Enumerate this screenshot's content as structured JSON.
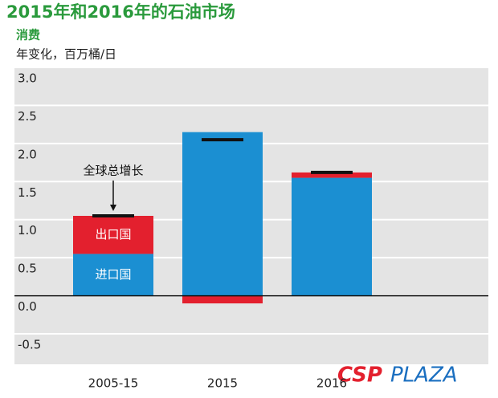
{
  "chart_data": {
    "type": "bar",
    "title": "2015年和2016年的石油市场",
    "subtitle": "消费",
    "y_label": "年变化，百万桶/日",
    "annotation": "全球总增长",
    "categories": [
      "2005-15",
      "2015",
      "2016"
    ],
    "series": [
      {
        "name": "进口国",
        "color": "#1b8fd2",
        "values": [
          0.55,
          2.15,
          1.55
        ]
      },
      {
        "name": "出口国",
        "color": "#e3202e",
        "values": [
          0.5,
          -0.1,
          0.07
        ]
      }
    ],
    "totals": [
      1.05,
      2.05,
      1.62
    ],
    "total_color": "#111111",
    "ylim": [
      -0.9,
      3.0
    ],
    "yticks": [
      -0.5,
      {
        "value": 0,
        "label": "0.0"
      },
      0.5,
      {
        "value": 1,
        "label": "1.0"
      },
      1.5,
      {
        "value": 2,
        "label": "2.0"
      },
      2.5,
      {
        "value": 3,
        "label": "3.0"
      }
    ],
    "grid": true,
    "watermark": [
      "CSP",
      "PLAZA"
    ]
  }
}
